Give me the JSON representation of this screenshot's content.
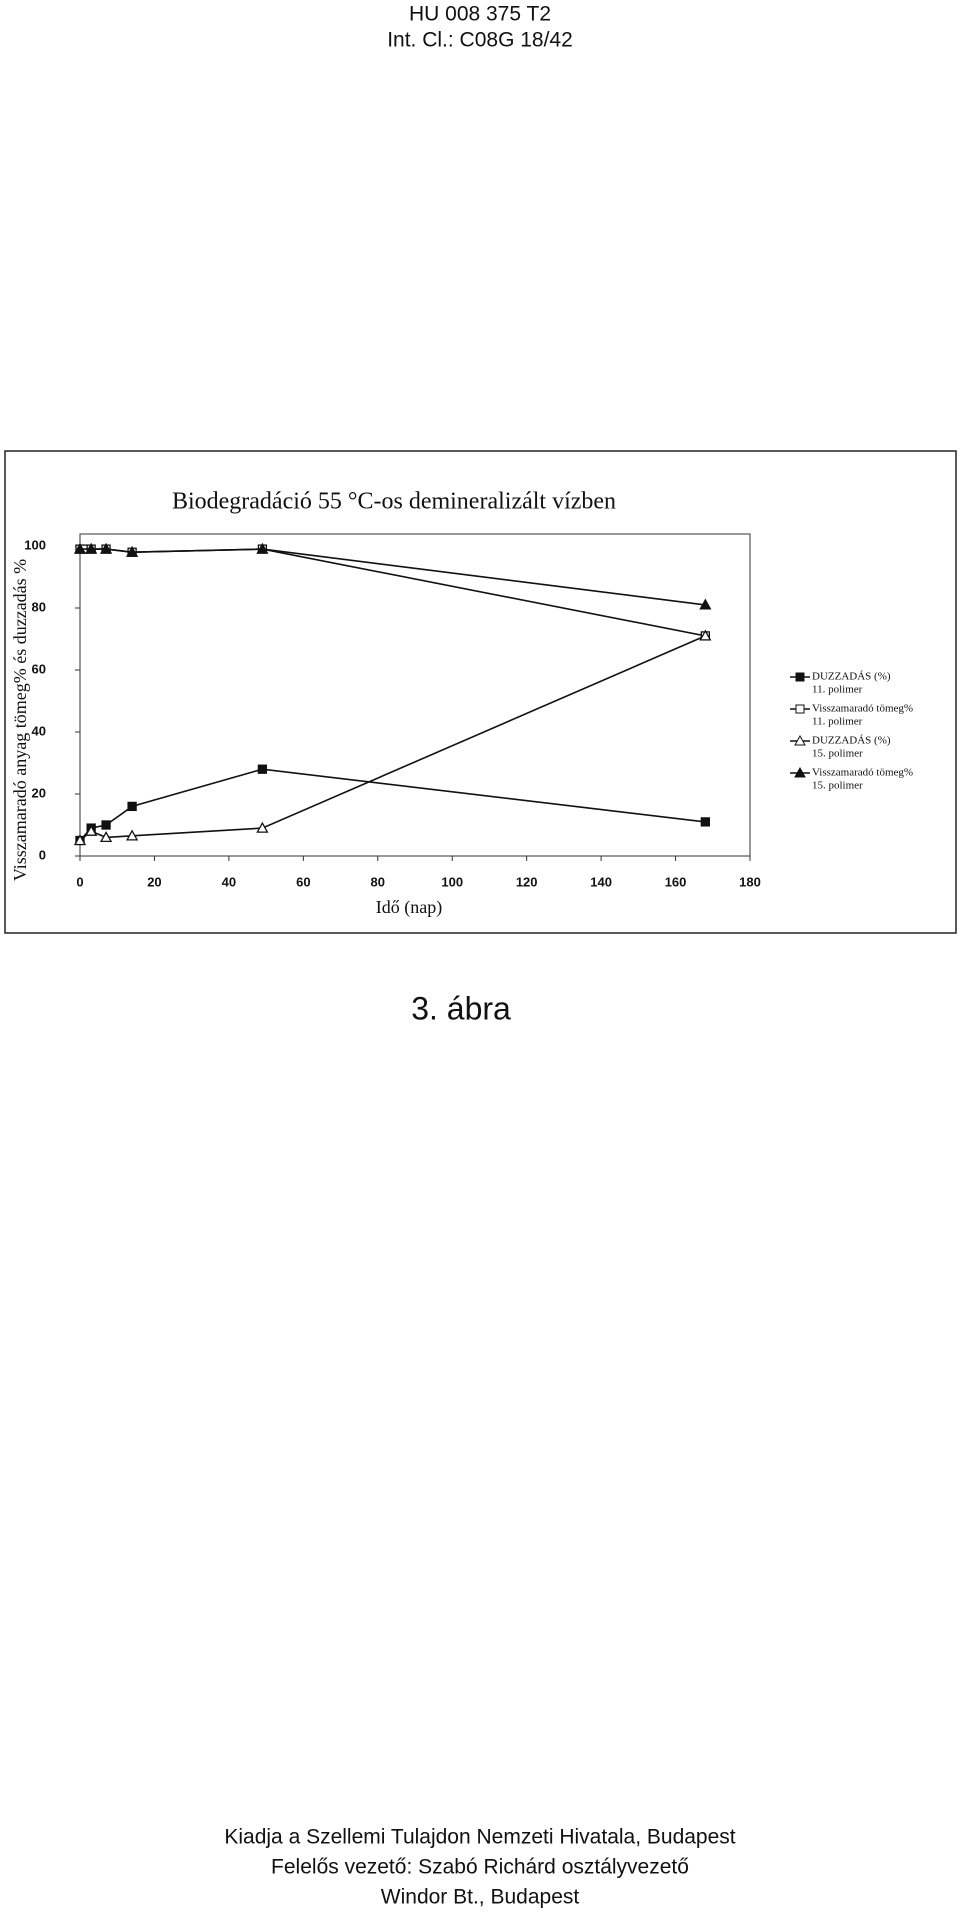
{
  "header": {
    "number": "HU 008 375 T2",
    "class": "Int. Cl.: C08G 18/42"
  },
  "chart_data": {
    "type": "line",
    "title": "Biodegradáció 55 °C-os demineralizált vízben",
    "x_label": "Idő (nap)",
    "y_label": "Visszamaradó anyag tömeg% és duzzadás %",
    "xlim": [
      0,
      180
    ],
    "xticks": [
      0,
      20,
      40,
      60,
      80,
      100,
      120,
      140,
      160,
      180
    ],
    "ylim": [
      0,
      100
    ],
    "yticks": [
      0,
      20,
      40,
      60,
      80,
      100
    ],
    "series": [
      {
        "name": "DUZZADÁS (%)",
        "polymer": "11. polimer",
        "color": "#111111",
        "marker": "square",
        "filled": true,
        "x": [
          0,
          3,
          7,
          14,
          49,
          168
        ],
        "values": [
          5,
          9,
          10,
          16,
          28,
          11
        ]
      },
      {
        "name": "Visszamaradó tömeg%",
        "polymer": "11. polimer",
        "color": "#111111",
        "marker": "square",
        "filled": false,
        "x": [
          0,
          1,
          3,
          7,
          14,
          49,
          168
        ],
        "values": [
          99,
          99,
          99,
          99,
          98,
          99,
          71
        ]
      },
      {
        "name": "DUZZADÁS (%)",
        "polymer": "15. polimer",
        "color": "#111111",
        "marker": "triangle",
        "filled": false,
        "x": [
          0,
          3,
          7,
          14,
          49,
          168
        ],
        "values": [
          5,
          8,
          6,
          6.5,
          9,
          71
        ]
      },
      {
        "name": "Visszamaradó tömeg%",
        "polymer": "15. polimer",
        "color": "#111111",
        "marker": "triangle",
        "filled": true,
        "x": [
          0,
          3,
          7,
          14,
          49,
          168
        ],
        "values": [
          99,
          99,
          99,
          98,
          99,
          81
        ]
      }
    ]
  },
  "caption": "3. ábra",
  "footer": [
    "Kiadja a Szellemi Tulajdon Nemzeti Hivatala, Budapest",
    "Felelős vezető: Szabó Richárd osztályvezető",
    "Windor Bt., Budapest"
  ]
}
